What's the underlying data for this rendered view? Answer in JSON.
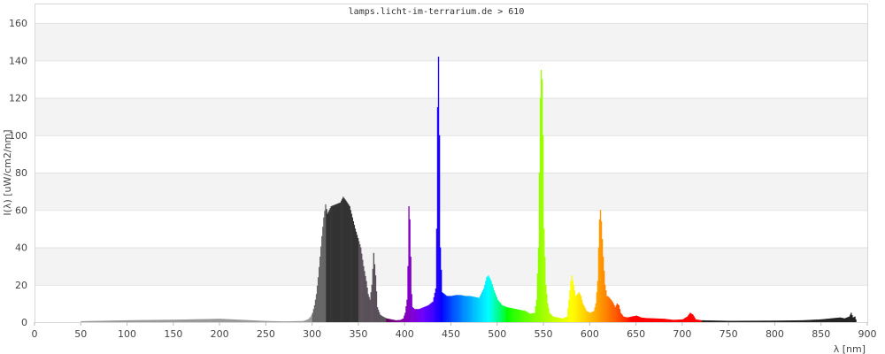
{
  "chart_data": {
    "type": "bar",
    "title": "lamps.licht-im-terrarium.de > 610",
    "xlabel": "λ [nm]",
    "ylabel": "I(λ)  [uW/cm2/nm]",
    "xlim": [
      0,
      900
    ],
    "ylim": [
      0,
      160
    ],
    "xticks": [
      0,
      50,
      100,
      150,
      200,
      250,
      300,
      350,
      400,
      450,
      500,
      550,
      600,
      650,
      700,
      750,
      800,
      850,
      900
    ],
    "yticks": [
      0,
      20,
      40,
      60,
      80,
      100,
      120,
      140,
      160
    ],
    "grid": "horizontal, alternating bands",
    "legend": "none",
    "colors": {
      "band": "#f3f3f3",
      "gridline": "#e2e2e2",
      "uv_c": "#999999",
      "uv_b": "#666666",
      "uv_a_dark": "#333333",
      "uv_a": "#5a505a",
      "ir": "#222222"
    },
    "points": [
      [
        50,
        0.5
      ],
      [
        100,
        1
      ],
      [
        150,
        1.3
      ],
      [
        200,
        1.8
      ],
      [
        250,
        0.6
      ],
      [
        260,
        0.5
      ],
      [
        270,
        0.4
      ],
      [
        280,
        0.5
      ],
      [
        290,
        0.6
      ],
      [
        295,
        1.5
      ],
      [
        298,
        3
      ],
      [
        300,
        5
      ],
      [
        302,
        9
      ],
      [
        304,
        15
      ],
      [
        306,
        24
      ],
      [
        308,
        35
      ],
      [
        310,
        46
      ],
      [
        312,
        56
      ],
      [
        314,
        63
      ],
      [
        316,
        58
      ],
      [
        318,
        60
      ],
      [
        320,
        62
      ],
      [
        325,
        63
      ],
      [
        330,
        64
      ],
      [
        333,
        67
      ],
      [
        336,
        65
      ],
      [
        340,
        62
      ],
      [
        343,
        56
      ],
      [
        346,
        50
      ],
      [
        349,
        45
      ],
      [
        352,
        40
      ],
      [
        355,
        30
      ],
      [
        358,
        22
      ],
      [
        360,
        15
      ],
      [
        362,
        12
      ],
      [
        364,
        20
      ],
      [
        366,
        37
      ],
      [
        368,
        25
      ],
      [
        370,
        8
      ],
      [
        373,
        4
      ],
      [
        376,
        3
      ],
      [
        380,
        2
      ],
      [
        385,
        1.5
      ],
      [
        390,
        1
      ],
      [
        395,
        1.2
      ],
      [
        398,
        2
      ],
      [
        400,
        5
      ],
      [
        402,
        12
      ],
      [
        403,
        30
      ],
      [
        404,
        62
      ],
      [
        405,
        55
      ],
      [
        406,
        35
      ],
      [
        407,
        15
      ],
      [
        408,
        8
      ],
      [
        410,
        7
      ],
      [
        415,
        7
      ],
      [
        420,
        8
      ],
      [
        425,
        9
      ],
      [
        430,
        11
      ],
      [
        433,
        18
      ],
      [
        434,
        50
      ],
      [
        435,
        115
      ],
      [
        436,
        142
      ],
      [
        437,
        100
      ],
      [
        438,
        40
      ],
      [
        440,
        16
      ],
      [
        445,
        14
      ],
      [
        450,
        14
      ],
      [
        455,
        14.5
      ],
      [
        460,
        14.5
      ],
      [
        465,
        14
      ],
      [
        470,
        14
      ],
      [
        475,
        13.5
      ],
      [
        480,
        13
      ],
      [
        485,
        18
      ],
      [
        488,
        24
      ],
      [
        490,
        25
      ],
      [
        493,
        22
      ],
      [
        496,
        17
      ],
      [
        500,
        12
      ],
      [
        505,
        9
      ],
      [
        510,
        8
      ],
      [
        520,
        7
      ],
      [
        530,
        6
      ],
      [
        535,
        4.5
      ],
      [
        540,
        5
      ],
      [
        542,
        12
      ],
      [
        544,
        40
      ],
      [
        545,
        80
      ],
      [
        546,
        120
      ],
      [
        547,
        135
      ],
      [
        548,
        130
      ],
      [
        549,
        100
      ],
      [
        550,
        50
      ],
      [
        552,
        20
      ],
      [
        554,
        10
      ],
      [
        556,
        5
      ],
      [
        560,
        3
      ],
      [
        570,
        2
      ],
      [
        575,
        3
      ],
      [
        577,
        12
      ],
      [
        579,
        22
      ],
      [
        580,
        25
      ],
      [
        582,
        20
      ],
      [
        584,
        14
      ],
      [
        586,
        15
      ],
      [
        588,
        16
      ],
      [
        590,
        14
      ],
      [
        592,
        10
      ],
      [
        594,
        8
      ],
      [
        596,
        6
      ],
      [
        600,
        5
      ],
      [
        604,
        6
      ],
      [
        606,
        10
      ],
      [
        608,
        22
      ],
      [
        609,
        40
      ],
      [
        610,
        55
      ],
      [
        611,
        60
      ],
      [
        612,
        54
      ],
      [
        614,
        35
      ],
      [
        616,
        20
      ],
      [
        618,
        14
      ],
      [
        620,
        13.5
      ],
      [
        624,
        11
      ],
      [
        627,
        8
      ],
      [
        629,
        10
      ],
      [
        631,
        9
      ],
      [
        633,
        5
      ],
      [
        636,
        3
      ],
      [
        640,
        2.5
      ],
      [
        650,
        3.5
      ],
      [
        655,
        2.5
      ],
      [
        660,
        2.2
      ],
      [
        670,
        2
      ],
      [
        680,
        1.8
      ],
      [
        690,
        1.2
      ],
      [
        700,
        1.5
      ],
      [
        705,
        3
      ],
      [
        708,
        5
      ],
      [
        711,
        4
      ],
      [
        714,
        1.5
      ],
      [
        720,
        1
      ],
      [
        750,
        0.7
      ],
      [
        800,
        0.8
      ],
      [
        830,
        1
      ],
      [
        850,
        1.5
      ],
      [
        860,
        2
      ],
      [
        870,
        2.5
      ],
      [
        875,
        2
      ],
      [
        880,
        3
      ],
      [
        882,
        5
      ],
      [
        884,
        2.5
      ],
      [
        886,
        3
      ],
      [
        888,
        0
      ]
    ]
  }
}
